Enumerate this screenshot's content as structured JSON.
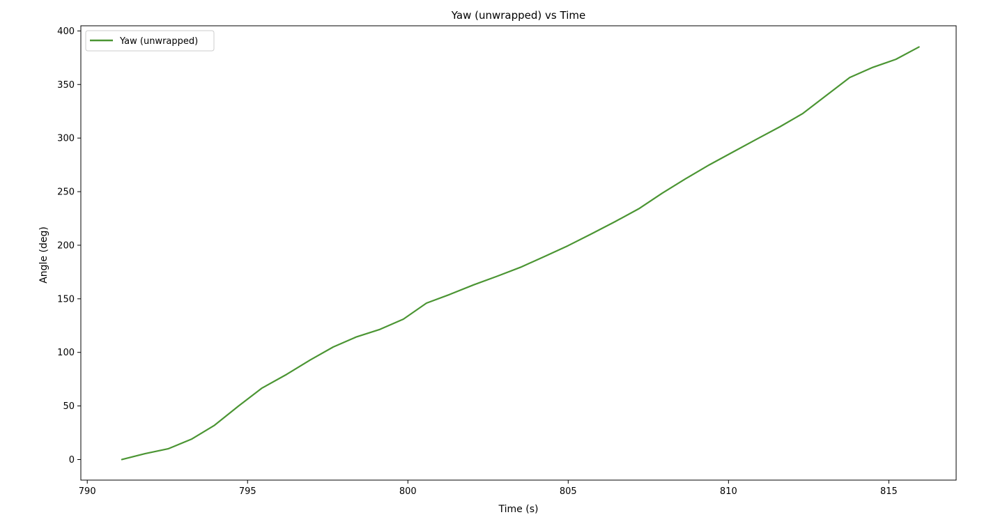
{
  "chart_data": {
    "type": "line",
    "title": "Yaw (unwrapped) vs Time",
    "xlabel": "Time (s)",
    "ylabel": "Angle (deg)",
    "xlim": [
      789.8,
      817.1
    ],
    "ylim": [
      -19.2,
      404.8
    ],
    "xticks": [
      790,
      795,
      800,
      805,
      810,
      815
    ],
    "yticks": [
      0,
      50,
      100,
      150,
      200,
      250,
      300,
      350,
      400
    ],
    "grid": false,
    "legend_position": "top-left",
    "series": [
      {
        "name": "Yaw (unwrapped)",
        "color": "#4b9533",
        "x": [
          791.08,
          791.8,
          792.52,
          793.25,
          793.97,
          794.72,
          795.44,
          796.22,
          796.96,
          797.67,
          798.4,
          799.13,
          799.86,
          800.58,
          801.3,
          802.05,
          802.78,
          803.52,
          804.26,
          804.99,
          805.72,
          806.46,
          807.2,
          807.93,
          808.66,
          809.4,
          810.14,
          810.88,
          811.6,
          812.32,
          813.06,
          813.78,
          814.5,
          815.22,
          815.94
        ],
        "y": [
          0,
          5.5,
          10,
          19,
          32,
          50,
          66.5,
          79.5,
          93,
          105,
          114.5,
          121.5,
          131,
          146,
          154,
          163,
          171,
          179.5,
          189.5,
          199.5,
          210.5,
          222,
          234,
          248.5,
          262,
          275,
          287,
          299,
          310.5,
          323,
          340,
          356.5,
          366,
          373.5,
          385
        ]
      }
    ]
  }
}
